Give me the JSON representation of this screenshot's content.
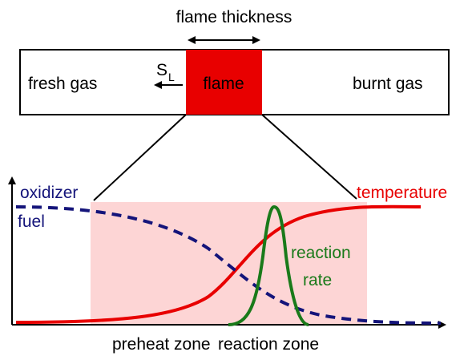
{
  "top": {
    "title": "flame thickness",
    "speed_symbol": "S",
    "speed_subscript": "L",
    "fresh": "fresh gas",
    "flame": "flame",
    "burnt": "burnt gas"
  },
  "profile": {
    "oxidizer": "oxidizer",
    "fuel": "fuel",
    "temperature": "temperature",
    "reaction_line1": "reaction",
    "reaction_line2": "rate",
    "preheat": "preheat zone",
    "reaction_zone": "reaction zone"
  }
}
